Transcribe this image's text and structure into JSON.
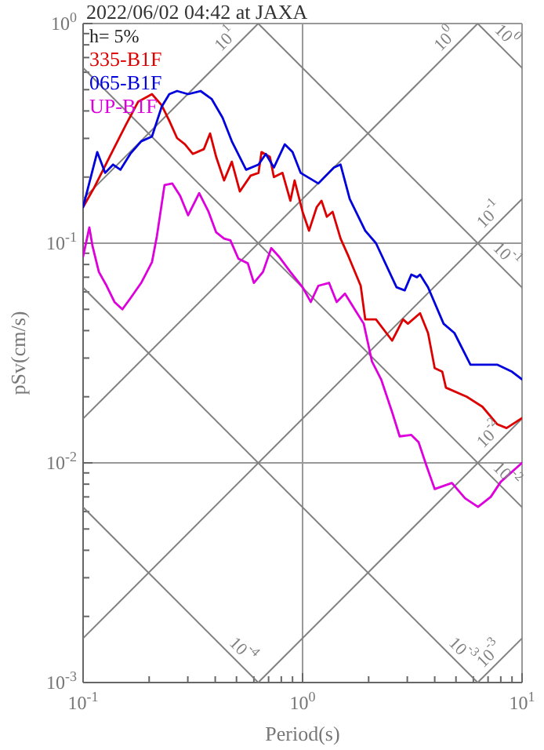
{
  "chart_data": {
    "type": "line",
    "title": "2022/06/02 04:42 at JAXA",
    "xlabel": "Period(s)",
    "ylabel": "pSv(cm/s)",
    "log": "xy",
    "grid": true,
    "legend": "top left",
    "annotations": [
      "h= 5%",
      {
        "text": "10$^{1}$",
        "x": 0.487,
        "y": 0.775
      },
      {
        "text": "10$^{0}$",
        "x": 4.87,
        "y": 0.775
      },
      {
        "text": "10$^{-1}$",
        "x": 7.75,
        "y": 0.123
      },
      {
        "text": "10$^{-2}$",
        "x": 7.75,
        "y": 0.0123
      },
      {
        "text": "10$^{-3}$",
        "x": 7.75,
        "y": 0.00123
      },
      {
        "text": "10$^{0}$",
        "x": 7.75,
        "y": 0.81
      },
      {
        "text": "10$^{-1}$",
        "x": 7.75,
        "y": 0.081
      },
      {
        "text": "10$^{-2}$",
        "x": 7.75,
        "y": 0.0081
      },
      {
        "text": "10$^{-3}$",
        "x": 4.87,
        "y": 0.00129
      },
      {
        "text": "10$^{-4}$",
        "x": 0.487,
        "y": 0.00129
      }
    ],
    "xlim": [
      0.1,
      10
    ],
    "ylim": [
      0.001,
      1
    ],
    "xticks": [
      {
        "value": 0.1,
        "label": "10$^{-1}$"
      },
      {
        "value": 0.2,
        "label": null
      },
      {
        "value": 0.3,
        "label": null
      },
      {
        "value": 0.4,
        "label": null
      },
      {
        "value": 0.5,
        "label": null
      },
      {
        "value": 0.6,
        "label": null
      },
      {
        "value": 0.7,
        "label": null
      },
      {
        "value": 0.8,
        "label": null
      },
      {
        "value": 0.9,
        "label": null
      },
      {
        "value": 1,
        "label": "10$^{0}$"
      },
      {
        "value": 2,
        "label": null
      },
      {
        "value": 3,
        "label": null
      },
      {
        "value": 4,
        "label": null
      },
      {
        "value": 5,
        "label": null
      },
      {
        "value": 6,
        "label": null
      },
      {
        "value": 7,
        "label": null
      },
      {
        "value": 8,
        "label": null
      },
      {
        "value": 9,
        "label": null
      },
      {
        "value": 10,
        "label": "10$^{1}$"
      }
    ],
    "yticks": [
      {
        "value": 0.001,
        "label": "10$^{-3}$"
      },
      {
        "value": 0.002,
        "label": null
      },
      {
        "value": 0.003,
        "label": null
      },
      {
        "value": 0.004,
        "label": null
      },
      {
        "value": 0.005,
        "label": null
      },
      {
        "value": 0.006,
        "label": null
      },
      {
        "value": 0.007,
        "label": null
      },
      {
        "value": 0.008,
        "label": null
      },
      {
        "value": 0.009,
        "label": null
      },
      {
        "value": 0.01,
        "label": "10$^{-2}$"
      },
      {
        "value": 0.02,
        "label": null
      },
      {
        "value": 0.03,
        "label": null
      },
      {
        "value": 0.04,
        "label": null
      },
      {
        "value": 0.05,
        "label": null
      },
      {
        "value": 0.06,
        "label": null
      },
      {
        "value": 0.07,
        "label": null
      },
      {
        "value": 0.08,
        "label": null
      },
      {
        "value": 0.09,
        "label": null
      },
      {
        "value": 0.1,
        "label": "10$^{-1}$"
      },
      {
        "value": 0.2,
        "label": null
      },
      {
        "value": 0.3,
        "label": null
      },
      {
        "value": 0.4,
        "label": null
      },
      {
        "value": 0.5,
        "label": null
      },
      {
        "value": 0.6,
        "label": null
      },
      {
        "value": 0.7,
        "label": null
      },
      {
        "value": 0.8,
        "label": null
      },
      {
        "value": 0.9,
        "label": null
      },
      {
        "value": 1,
        "label": "10$^{0}$"
      }
    ],
    "series": [
      {
        "color": "#808080",
        "x": [
          0.1,
          0.628
        ],
        "values": [
          0.159,
          1
        ]
      },
      {
        "color": "#808080",
        "x": [
          0.1,
          6.28
        ],
        "values": [
          0.0159,
          1
        ]
      },
      {
        "color": "#808080",
        "x": [
          0.1,
          10
        ],
        "values": [
          0.00159,
          0.159
        ]
      },
      {
        "color": "#808080",
        "x": [
          0.628,
          10
        ],
        "values": [
          0.001,
          0.0159
        ]
      },
      {
        "color": "#808080",
        "x": [
          6.28,
          10
        ],
        "values": [
          0.001,
          0.00159
        ]
      },
      {
        "color": "#808080",
        "x": [
          6.28,
          10
        ],
        "values": [
          1,
          0.628
        ]
      },
      {
        "color": "#808080",
        "x": [
          0.628,
          10
        ],
        "values": [
          1,
          0.0628
        ]
      },
      {
        "color": "#808080",
        "x": [
          0.1,
          10
        ],
        "values": [
          0.628,
          0.00628
        ]
      },
      {
        "color": "#808080",
        "x": [
          0.1,
          6.28
        ],
        "values": [
          0.0628,
          0.001
        ]
      },
      {
        "color": "#808080",
        "x": [
          0.1,
          0.628
        ],
        "values": [
          0.00628,
          0.001
        ]
      },
      {
        "name": "335-B1F",
        "color": "#dd0000",
        "x": [
          0.1,
          0.112,
          0.132,
          0.156,
          0.178,
          0.206,
          0.228,
          0.247,
          0.268,
          0.291,
          0.316,
          0.355,
          0.379,
          0.404,
          0.439,
          0.476,
          0.518,
          0.58,
          0.63,
          0.65,
          0.71,
          0.74,
          0.81,
          0.88,
          0.92,
          1.0,
          1.07,
          1.16,
          1.22,
          1.29,
          1.37,
          1.49,
          1.62,
          1.84,
          1.93,
          2.16,
          2.56,
          2.87,
          3.02,
          3.43,
          3.73,
          4.0,
          4.33,
          4.5,
          5.6,
          6.6,
          7.7,
          8.5,
          10
        ],
        "values": [
          0.146,
          0.178,
          0.247,
          0.343,
          0.44,
          0.477,
          0.425,
          0.361,
          0.301,
          0.282,
          0.255,
          0.268,
          0.316,
          0.247,
          0.193,
          0.235,
          0.172,
          0.203,
          0.209,
          0.26,
          0.247,
          0.2,
          0.209,
          0.156,
          0.193,
          0.139,
          0.114,
          0.146,
          0.156,
          0.132,
          0.139,
          0.105,
          0.087,
          0.064,
          0.045,
          0.045,
          0.036,
          0.045,
          0.043,
          0.048,
          0.039,
          0.027,
          0.026,
          0.022,
          0.02,
          0.018,
          0.015,
          0.0144,
          0.016
        ]
      },
      {
        "name": "065-B1F",
        "color": "#0000dd",
        "x": [
          0.1,
          0.116,
          0.126,
          0.137,
          0.148,
          0.164,
          0.184,
          0.206,
          0.228,
          0.247,
          0.268,
          0.301,
          0.343,
          0.385,
          0.432,
          0.476,
          0.553,
          0.63,
          0.68,
          0.74,
          0.83,
          0.9,
          0.98,
          1.18,
          1.39,
          1.49,
          1.64,
          1.93,
          2.16,
          2.68,
          2.92,
          3.13,
          3.32,
          3.43,
          3.73,
          4.39,
          4.92,
          5.82,
          7.7,
          9.0,
          10
        ],
        "values": [
          0.146,
          0.26,
          0.209,
          0.228,
          0.216,
          0.255,
          0.291,
          0.306,
          0.418,
          0.477,
          0.493,
          0.477,
          0.493,
          0.454,
          0.373,
          0.291,
          0.216,
          0.228,
          0.255,
          0.221,
          0.282,
          0.26,
          0.209,
          0.187,
          0.221,
          0.228,
          0.159,
          0.114,
          0.1,
          0.063,
          0.061,
          0.072,
          0.07,
          0.072,
          0.063,
          0.043,
          0.039,
          0.028,
          0.028,
          0.026,
          0.024
        ]
      },
      {
        "name": "UP-B1F",
        "color": "#dd00dd",
        "x": [
          0.1,
          0.1068,
          0.1104,
          0.118,
          0.128,
          0.139,
          0.151,
          0.164,
          0.184,
          0.206,
          0.217,
          0.235,
          0.255,
          0.277,
          0.301,
          0.338,
          0.373,
          0.404,
          0.439,
          0.469,
          0.51,
          0.563,
          0.6,
          0.66,
          0.72,
          0.78,
          0.88,
          1.0,
          1.09,
          1.18,
          1.32,
          1.43,
          1.56,
          1.75,
          1.9,
          2.07,
          2.28,
          2.56,
          2.77,
          3.13,
          3.38,
          3.67,
          4.0,
          4.79,
          5.5,
          6.3,
          7.2,
          8.0,
          10
        ],
        "values": [
          0.087,
          0.118,
          0.097,
          0.074,
          0.064,
          0.054,
          0.05,
          0.056,
          0.066,
          0.082,
          0.108,
          0.184,
          0.187,
          0.164,
          0.134,
          0.169,
          0.139,
          0.112,
          0.105,
          0.103,
          0.085,
          0.081,
          0.066,
          0.074,
          0.095,
          0.087,
          0.074,
          0.063,
          0.054,
          0.064,
          0.066,
          0.054,
          0.059,
          0.049,
          0.043,
          0.029,
          0.024,
          0.017,
          0.0132,
          0.0134,
          0.0124,
          0.0097,
          0.0076,
          0.0081,
          0.0069,
          0.0063,
          0.007,
          0.0082,
          0.01
        ]
      }
    ]
  }
}
